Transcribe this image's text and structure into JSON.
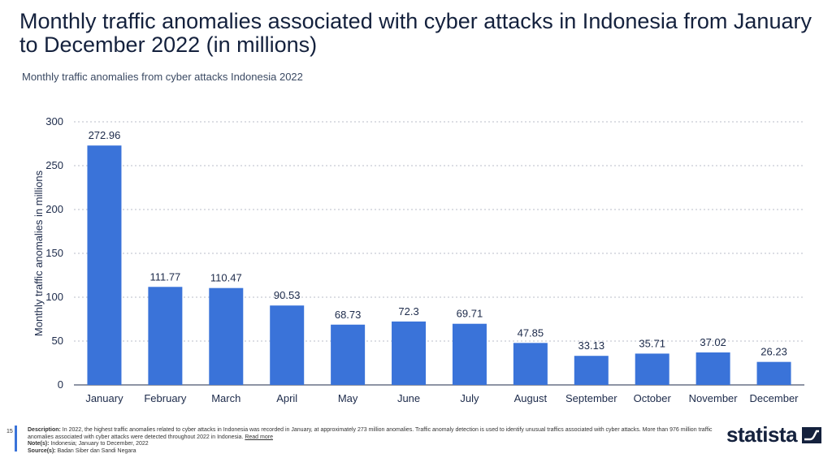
{
  "page": {
    "title": "Monthly traffic anomalies associated with cyber attacks in Indonesia from January to December 2022 (in millions)",
    "subtitle": "Monthly traffic anomalies from cyber attacks Indonesia 2022",
    "page_number": "15"
  },
  "footer": {
    "description_label": "Description:",
    "description": "In 2022, the highest traffic anomalies related to cyber attacks in Indonesia was recorded in January, at approximately 273 million anomalies. Traffic anomaly detection is used to identify unusual traffics associated with cyber attacks. More than 976 million traffic anomalies associated with cyber attacks were detected throughout 2022 in Indonesia.",
    "read_more": "Read more",
    "notes_label": "Note(s):",
    "notes": "Indonesia; January to December, 2022",
    "source_label": "Source(s):",
    "source": "Badan Siber dan Sandi Negara",
    "logo": "statista"
  },
  "colors": {
    "bar": "#3a73d9",
    "grid": "#b9bec8",
    "text": "#1c2a4a"
  },
  "chart_data": {
    "type": "bar",
    "title": "Monthly traffic anomalies associated with cyber attacks in Indonesia from January to December 2022 (in millions)",
    "ylabel": "Monthly traffic anomalies in millions",
    "xlabel": "",
    "ylim": [
      0,
      300
    ],
    "yticks": [
      0,
      50,
      100,
      150,
      200,
      250,
      300
    ],
    "grid": true,
    "categories": [
      "January",
      "February",
      "March",
      "April",
      "May",
      "June",
      "July",
      "August",
      "September",
      "October",
      "November",
      "December"
    ],
    "values": [
      272.96,
      111.77,
      110.47,
      90.53,
      68.73,
      72.3,
      69.71,
      47.85,
      33.13,
      35.71,
      37.02,
      26.23
    ],
    "value_labels": [
      "272.96",
      "111.77",
      "110.47",
      "90.53",
      "68.73",
      "72.3",
      "69.71",
      "47.85",
      "33.13",
      "35.71",
      "37.02",
      "26.23"
    ]
  }
}
